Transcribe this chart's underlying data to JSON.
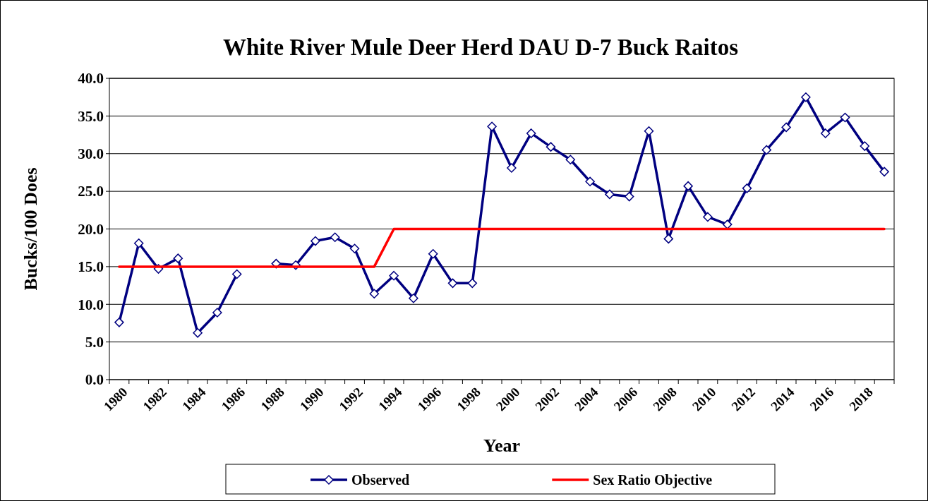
{
  "chart_data": {
    "type": "line",
    "title": "White River Mule Deer Herd DAU D-7 Buck Raitos",
    "xlabel": "Year",
    "ylabel": "Bucks/100 Does",
    "categories": [
      "1980",
      null,
      "1982",
      null,
      "1984",
      null,
      "1986",
      null,
      "1988",
      null,
      "1990",
      null,
      "1992",
      null,
      "1994",
      null,
      "1996",
      null,
      "1998",
      null,
      "2000",
      null,
      "2002",
      null,
      "2004",
      null,
      "2006",
      null,
      "2008",
      null,
      "2010",
      null,
      "2012",
      null,
      "2014",
      null,
      "2016",
      null,
      "2018",
      null
    ],
    "series": [
      {
        "name": "Observed",
        "color": "#000080",
        "marker": "diamond",
        "values": [
          7.6,
          18.1,
          14.7,
          16.1,
          6.2,
          8.9,
          14.0,
          null,
          15.4,
          15.2,
          18.4,
          18.9,
          17.4,
          11.4,
          13.8,
          10.8,
          16.7,
          12.8,
          12.8,
          33.6,
          28.1,
          32.7,
          30.9,
          29.2,
          26.3,
          24.6,
          24.3,
          33.0,
          18.7,
          25.7,
          21.6,
          20.6,
          25.4,
          30.5,
          33.5,
          37.5,
          32.7,
          34.8,
          31.0,
          27.6
        ]
      },
      {
        "name": "Sex Ratio Objective",
        "color": "#ff0000",
        "marker": "none",
        "values": [
          15,
          15,
          15,
          15,
          15,
          15,
          15,
          15,
          15,
          15,
          15,
          15,
          15,
          15,
          20,
          20,
          20,
          20,
          20,
          20,
          20,
          20,
          20,
          20,
          20,
          20,
          20,
          20,
          20,
          20,
          20,
          20,
          20,
          20,
          20,
          20,
          20,
          20,
          20,
          20
        ]
      }
    ],
    "ylim": [
      0,
      40
    ],
    "yticks": [
      {
        "value": 0,
        "label": "0.0"
      },
      {
        "value": 5,
        "label": "5.0"
      },
      {
        "value": 10,
        "label": "10.0"
      },
      {
        "value": 15,
        "label": "15.0"
      },
      {
        "value": 20,
        "label": "20.0"
      },
      {
        "value": 25,
        "label": "25.0"
      },
      {
        "value": 30,
        "label": "30.0"
      },
      {
        "value": 35,
        "label": "35.0"
      },
      {
        "value": 40,
        "label": "40.0"
      }
    ],
    "grid": "y",
    "legend": "bottom",
    "line_style": "solid"
  }
}
